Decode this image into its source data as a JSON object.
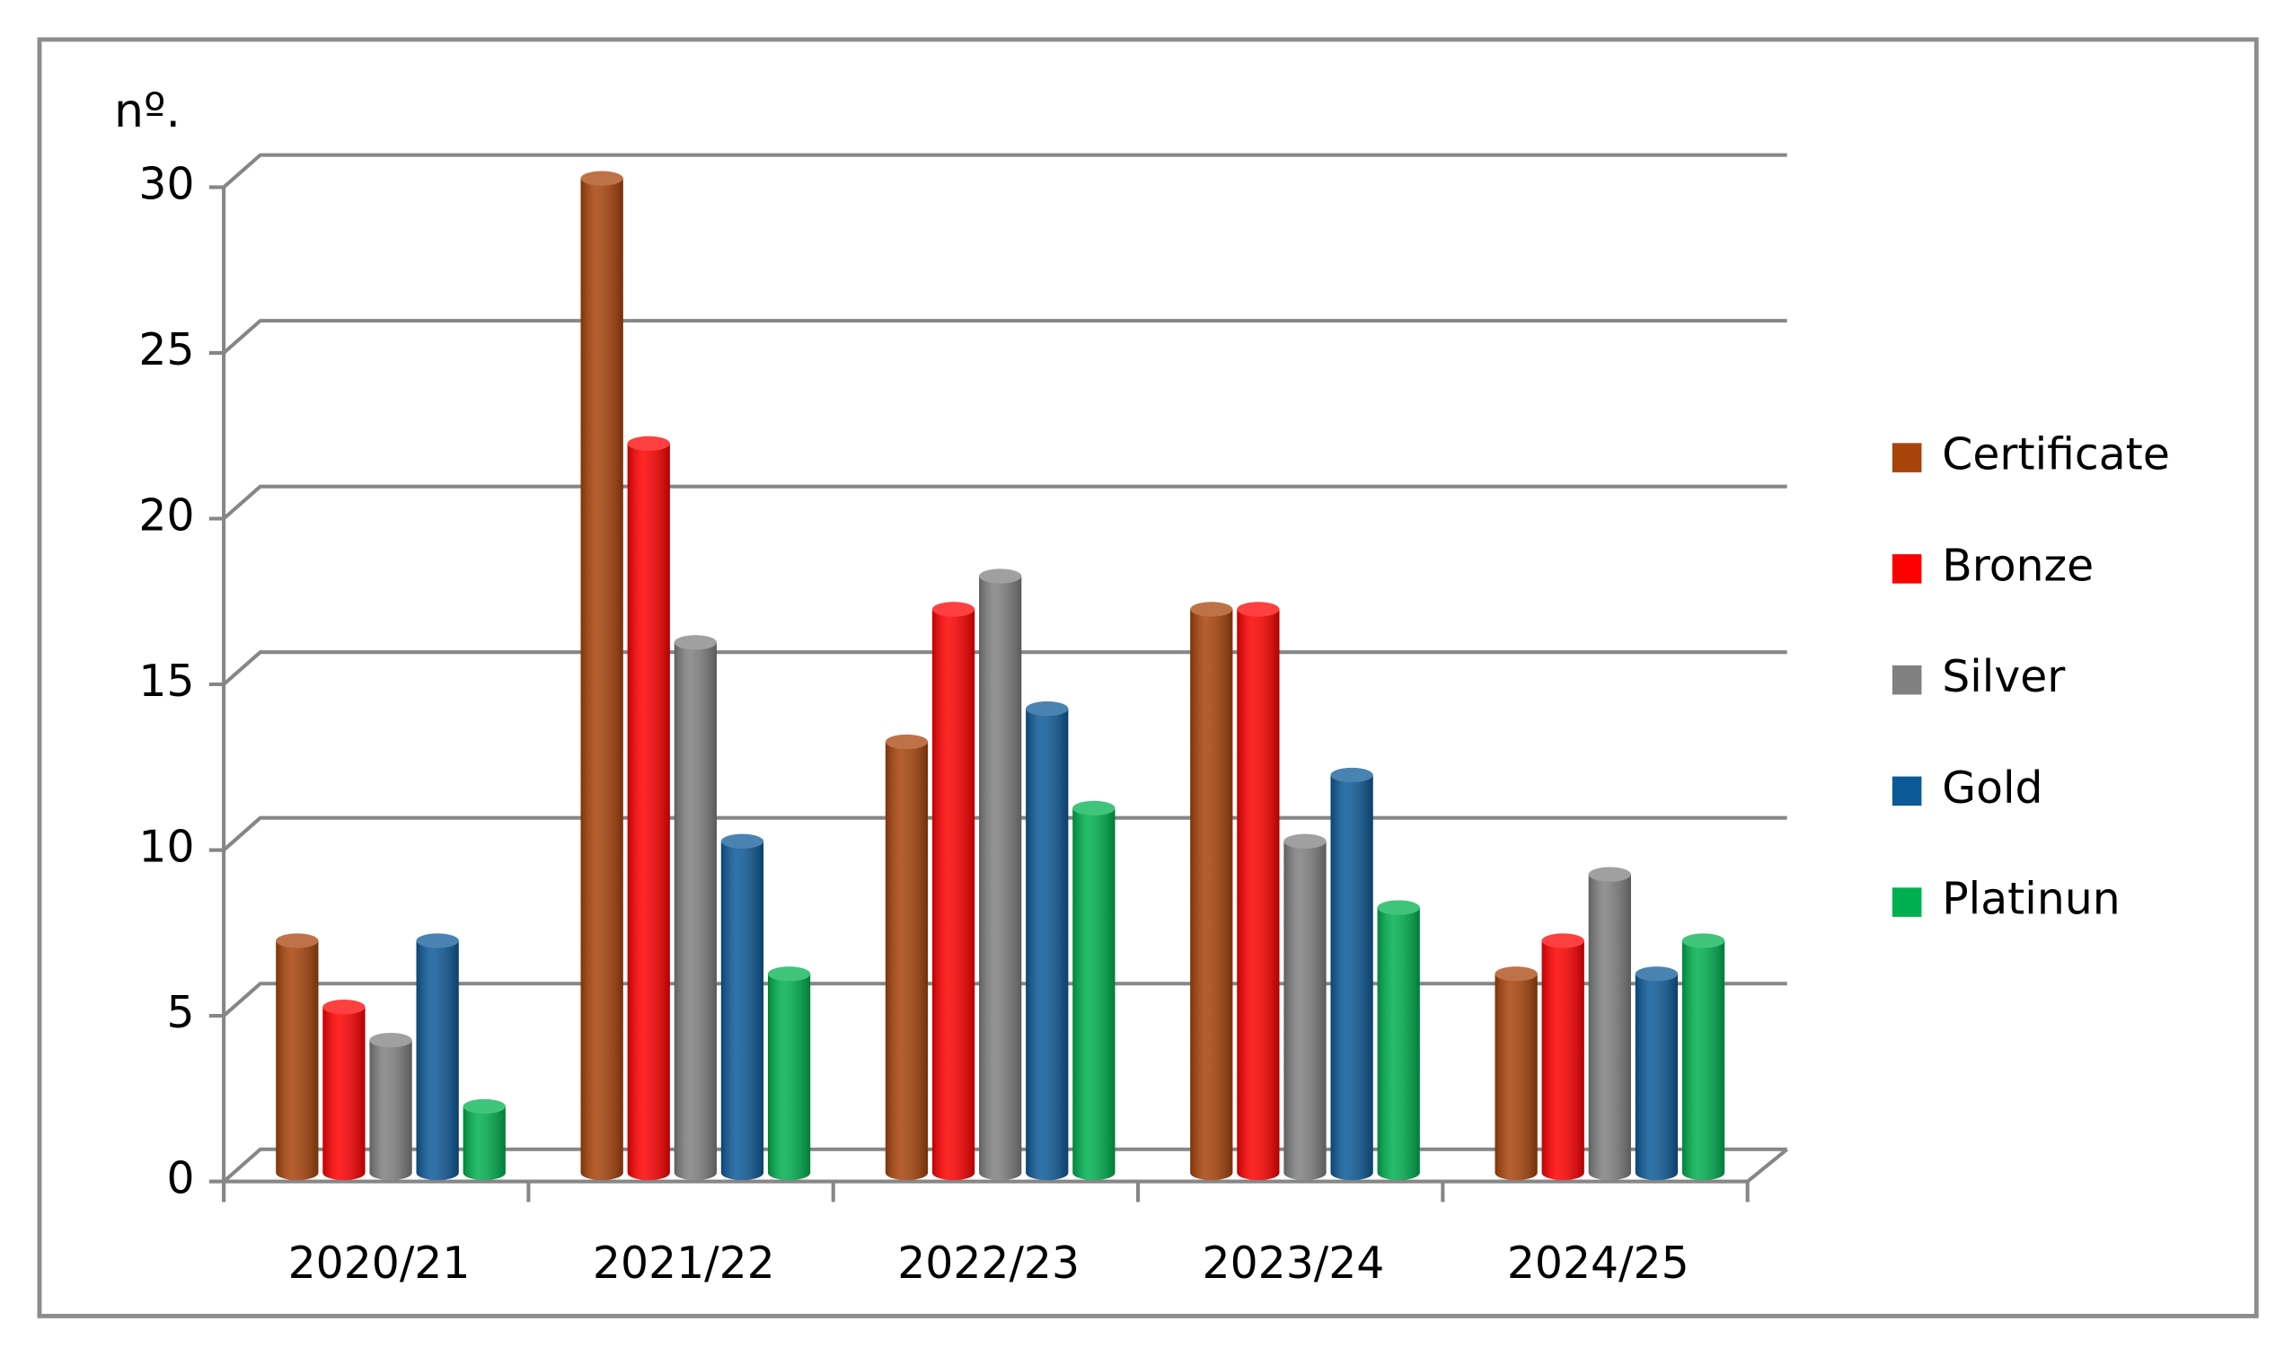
{
  "chart_data": {
    "type": "bar",
    "y_label": "nº.",
    "categories": [
      "2020/21",
      "2021/22",
      "2022/23",
      "2023/24",
      "2024/25"
    ],
    "series": [
      {
        "name": "Certificate",
        "color": "#a8430a",
        "values": [
          7,
          30,
          13,
          17,
          6
        ]
      },
      {
        "name": "Bronze",
        "color": "#ff0000",
        "values": [
          5,
          22,
          17,
          17,
          7
        ]
      },
      {
        "name": "Silver",
        "color": "#808080",
        "values": [
          4,
          16,
          18,
          10,
          9
        ]
      },
      {
        "name": "Gold",
        "color": "#0d5a98",
        "values": [
          7,
          10,
          14,
          12,
          6
        ]
      },
      {
        "name": "Platinun",
        "color": "#00b050",
        "values": [
          2,
          6,
          11,
          8,
          7
        ]
      }
    ],
    "ylim": [
      0,
      30
    ],
    "yticks": [
      0,
      5,
      10,
      15,
      20,
      25,
      30
    ],
    "grid": true,
    "legend": "right"
  }
}
